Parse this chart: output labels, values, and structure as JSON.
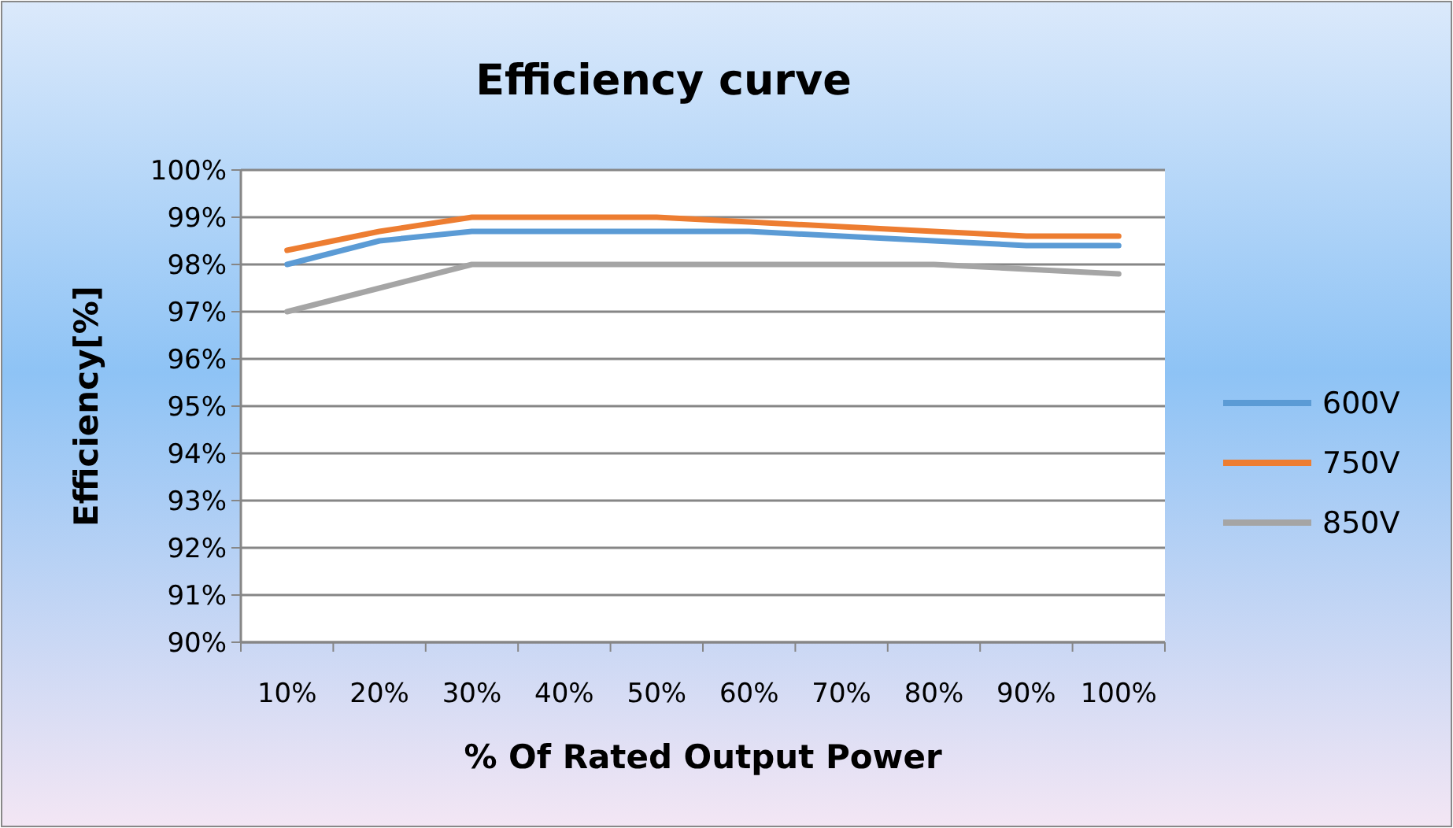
{
  "chart_data": {
    "type": "line",
    "title": "Efficiency curve",
    "xlabel": "% Of Rated Output Power",
    "ylabel": "Efficiency[%]",
    "categories": [
      "10%",
      "20%",
      "30%",
      "40%",
      "50%",
      "60%",
      "70%",
      "80%",
      "90%",
      "100%"
    ],
    "series": [
      {
        "name": "600V",
        "color": "#5b9bd5",
        "values": [
          98.0,
          98.5,
          98.7,
          98.7,
          98.7,
          98.7,
          98.6,
          98.5,
          98.4,
          98.4
        ]
      },
      {
        "name": "750V",
        "color": "#ed7d31",
        "values": [
          98.3,
          98.7,
          99.0,
          99.0,
          99.0,
          98.9,
          98.8,
          98.7,
          98.6,
          98.6
        ]
      },
      {
        "name": "850V",
        "color": "#a5a5a5",
        "values": [
          97.0,
          97.5,
          98.0,
          98.0,
          98.0,
          98.0,
          98.0,
          98.0,
          97.9,
          97.8
        ]
      }
    ],
    "ylim": [
      90,
      100
    ],
    "yticks": [
      {
        "value": 90,
        "label": "90%"
      },
      {
        "value": 91,
        "label": "91%"
      },
      {
        "value": 92,
        "label": "92%"
      },
      {
        "value": 93,
        "label": "93%"
      },
      {
        "value": 94,
        "label": "94%"
      },
      {
        "value": 95,
        "label": "95%"
      },
      {
        "value": 96,
        "label": "96%"
      },
      {
        "value": 97,
        "label": "97%"
      },
      {
        "value": 98,
        "label": "98%"
      },
      {
        "value": 99,
        "label": "99%"
      },
      {
        "value": 100,
        "label": "100%"
      }
    ],
    "grid": "y",
    "legend": "right",
    "marker": "none",
    "line_style": "solid"
  }
}
